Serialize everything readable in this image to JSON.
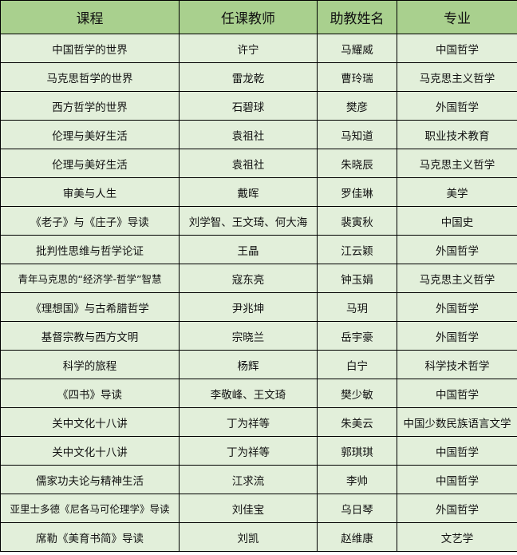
{
  "colors": {
    "header_bg": "#A9D08E",
    "row_bg": "#E2EFDA",
    "border": "#000000"
  },
  "table": {
    "headers": [
      "课程",
      "任课教师",
      "助教姓名",
      "专业"
    ],
    "rows": [
      [
        "中国哲学的世界",
        "许宁",
        "马耀威",
        "中国哲学"
      ],
      [
        "马克思哲学的世界",
        "雷龙乾",
        "曹玲瑞",
        "马克思主义哲学"
      ],
      [
        "西方哲学的世界",
        "石碧球",
        "樊彦",
        "外国哲学"
      ],
      [
        "伦理与美好生活",
        "袁祖社",
        "马知道",
        "职业技术教育"
      ],
      [
        "伦理与美好生活",
        "袁祖社",
        "朱晓辰",
        "马克思主义哲学"
      ],
      [
        "审美与人生",
        "戴晖",
        "罗佳琳",
        "美学"
      ],
      [
        "《老子》与《庄子》导读",
        "刘学智、王文琦、何大海",
        "裴寅秋",
        "中国史"
      ],
      [
        "批判性思维与哲学论证",
        "王晶",
        "江云颖",
        "外国哲学"
      ],
      [
        "青年马克思的“经济学-哲学”智慧",
        "寇东亮",
        "钟玉娟",
        "马克思主义哲学"
      ],
      [
        "《理想国》与古希腊哲学",
        "尹兆坤",
        "马玥",
        "外国哲学"
      ],
      [
        "基督宗教与西方文明",
        "宗晓兰",
        "岳宇豪",
        "外国哲学"
      ],
      [
        "科学的旅程",
        "杨辉",
        "白宁",
        "科学技术哲学"
      ],
      [
        "《四书》导读",
        "李敬峰、王文琦",
        "樊少敏",
        "中国哲学"
      ],
      [
        "关中文化十八讲",
        "丁为祥等",
        "朱美云",
        "中国少数民族语言文学"
      ],
      [
        "关中文化十八讲",
        "丁为祥等",
        "郭琪琪",
        "中国哲学"
      ],
      [
        "儒家功夫论与精神生活",
        "江求流",
        "李帅",
        "中国哲学"
      ],
      [
        "亚里士多德《尼各马可伦理学》导读",
        "刘佳宝",
        "乌日琴",
        "外国哲学"
      ],
      [
        "席勒《美育书简》导读",
        "刘凯",
        "赵维康",
        "文艺学"
      ]
    ]
  }
}
